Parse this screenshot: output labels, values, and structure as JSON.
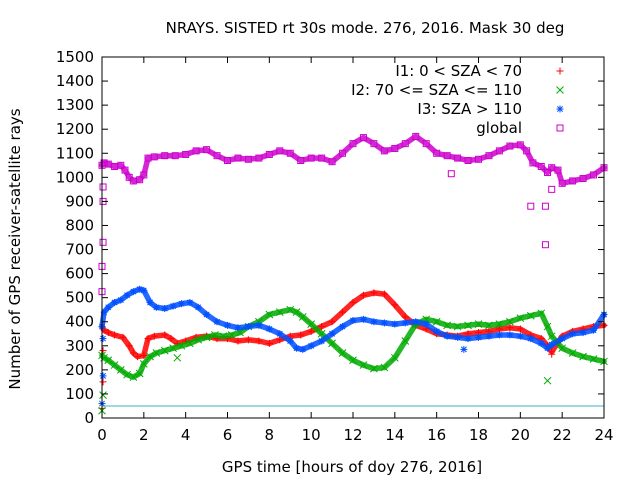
{
  "chart_data": {
    "type": "scatter",
    "title": "NRAYS. SISTED rt 30s mode. 276, 2016. Mask 30 deg",
    "xlabel": "GPS time [hours of doy 276, 2016]",
    "ylabel": "Number of GPS receiver-satellite rays",
    "xlim": [
      0,
      24
    ],
    "ylim": [
      0,
      1500
    ],
    "xticks": [
      0,
      2,
      4,
      6,
      8,
      10,
      12,
      14,
      16,
      18,
      20,
      22,
      24
    ],
    "yticks": [
      0,
      100,
      200,
      300,
      400,
      500,
      600,
      700,
      800,
      900,
      1000,
      1100,
      1200,
      1300,
      1400,
      1500
    ],
    "legend_position": "top-right",
    "reference_line": {
      "y": 50,
      "color": "#40b0c0"
    },
    "series": [
      {
        "name": "I1: 0 < SZA < 70",
        "color": "#ff0000",
        "marker": "+",
        "x": [
          0.0,
          0.1,
          0.3,
          0.6,
          1.0,
          1.3,
          1.5,
          1.7,
          2.0,
          2.2,
          2.5,
          3.0,
          3.3,
          3.6,
          4.0,
          4.5,
          5.0,
          5.5,
          6.0,
          6.5,
          7.0,
          7.5,
          8.0,
          8.5,
          9.0,
          9.5,
          10.0,
          10.5,
          11.0,
          11.5,
          12.0,
          12.5,
          13.0,
          13.5,
          14.0,
          14.5,
          15.0,
          15.5,
          16.0,
          16.5,
          17.0,
          17.5,
          18.0,
          18.5,
          19.0,
          19.5,
          20.0,
          20.5,
          21.0,
          21.3,
          21.5,
          22.0,
          22.5,
          23.0,
          23.5,
          24.0
        ],
        "y": [
          380,
          365,
          355,
          345,
          335,
          300,
          270,
          255,
          260,
          330,
          340,
          345,
          330,
          310,
          320,
          335,
          340,
          330,
          330,
          320,
          325,
          320,
          310,
          325,
          340,
          345,
          360,
          380,
          400,
          440,
          480,
          510,
          520,
          515,
          470,
          420,
          385,
          370,
          350,
          345,
          340,
          350,
          355,
          360,
          370,
          375,
          370,
          345,
          330,
          300,
          275,
          340,
          360,
          370,
          380,
          385
        ]
      },
      {
        "name": "I2: 70 <= SZA <= 110",
        "color": "#00aa00",
        "marker": "x",
        "x": [
          0.0,
          0.1,
          0.3,
          0.6,
          0.9,
          1.2,
          1.5,
          1.8,
          2.0,
          2.3,
          2.6,
          3.0,
          3.4,
          3.8,
          4.2,
          4.6,
          5.0,
          5.4,
          5.8,
          6.2,
          6.6,
          7.0,
          7.5,
          8.0,
          8.5,
          9.0,
          9.3,
          9.6,
          10.0,
          10.5,
          11.0,
          11.5,
          12.0,
          12.5,
          13.0,
          13.5,
          14.0,
          14.5,
          15.0,
          15.5,
          16.0,
          16.5,
          17.0,
          17.5,
          18.0,
          18.5,
          19.0,
          19.5,
          20.0,
          20.5,
          21.0,
          21.3,
          21.5,
          22.0,
          22.5,
          23.0,
          23.5,
          24.0
        ],
        "y": [
          260,
          250,
          240,
          220,
          200,
          180,
          170,
          185,
          225,
          255,
          270,
          280,
          290,
          300,
          310,
          325,
          335,
          345,
          340,
          345,
          355,
          380,
          400,
          430,
          440,
          450,
          440,
          420,
          390,
          350,
          310,
          270,
          240,
          220,
          205,
          210,
          250,
          320,
          390,
          410,
          400,
          385,
          380,
          385,
          390,
          385,
          390,
          400,
          415,
          425,
          435,
          380,
          340,
          290,
          270,
          255,
          245,
          235
        ]
      },
      {
        "name": "I3: SZA > 110",
        "color": "#0050ff",
        "marker": "*",
        "x": [
          0.0,
          0.1,
          0.3,
          0.6,
          0.9,
          1.2,
          1.5,
          1.8,
          2.0,
          2.3,
          2.6,
          3.0,
          3.4,
          3.8,
          4.2,
          4.6,
          5.0,
          5.5,
          6.0,
          6.5,
          7.0,
          7.5,
          8.0,
          8.5,
          9.0,
          9.3,
          9.6,
          10.0,
          10.5,
          11.0,
          11.5,
          12.0,
          12.5,
          13.0,
          13.5,
          14.0,
          14.5,
          15.0,
          15.5,
          16.0,
          16.5,
          17.0,
          17.5,
          18.0,
          18.5,
          19.0,
          19.5,
          20.0,
          20.5,
          21.0,
          21.3,
          21.5,
          22.0,
          22.5,
          23.0,
          23.5,
          24.0
        ],
        "y": [
          380,
          440,
          460,
          480,
          490,
          510,
          525,
          535,
          530,
          480,
          460,
          455,
          465,
          475,
          480,
          460,
          430,
          400,
          385,
          375,
          380,
          385,
          370,
          350,
          320,
          290,
          285,
          300,
          320,
          350,
          380,
          405,
          410,
          400,
          395,
          390,
          395,
          400,
          390,
          360,
          340,
          335,
          330,
          335,
          340,
          345,
          345,
          340,
          330,
          310,
          290,
          305,
          330,
          350,
          355,
          365,
          430
        ]
      },
      {
        "name": "global",
        "color": "#cc00cc",
        "marker": "square",
        "x": [
          0.0,
          0.1,
          0.3,
          0.6,
          0.9,
          1.1,
          1.3,
          1.5,
          1.8,
          2.0,
          2.2,
          2.5,
          3.0,
          3.5,
          4.0,
          4.5,
          5.0,
          5.5,
          6.0,
          6.5,
          7.0,
          7.5,
          8.0,
          8.5,
          9.0,
          9.5,
          10.0,
          10.5,
          11.0,
          11.5,
          12.0,
          12.5,
          13.0,
          13.5,
          14.0,
          14.5,
          15.0,
          15.5,
          16.0,
          16.5,
          17.0,
          17.5,
          18.0,
          18.5,
          19.0,
          19.5,
          20.0,
          20.3,
          20.6,
          21.0,
          21.3,
          21.5,
          21.8,
          22.0,
          22.5,
          23.0,
          23.5,
          24.0
        ],
        "y": [
          1050,
          1060,
          1055,
          1045,
          1050,
          1030,
          1000,
          985,
          990,
          1010,
          1080,
          1085,
          1090,
          1090,
          1095,
          1110,
          1115,
          1090,
          1070,
          1080,
          1075,
          1080,
          1095,
          1110,
          1100,
          1070,
          1080,
          1080,
          1065,
          1100,
          1140,
          1165,
          1140,
          1110,
          1120,
          1140,
          1170,
          1140,
          1100,
          1090,
          1080,
          1070,
          1075,
          1090,
          1110,
          1130,
          1135,
          1110,
          1060,
          1045,
          1020,
          1040,
          1030,
          975,
          985,
          995,
          1010,
          1040
        ]
      }
    ],
    "outliers": {
      "global": [
        [
          0.0,
          525
        ],
        [
          0.0,
          630
        ],
        [
          0.05,
          730
        ],
        [
          0.05,
          900
        ],
        [
          0.05,
          960
        ],
        [
          16.7,
          1015
        ],
        [
          20.5,
          880
        ],
        [
          21.2,
          880
        ],
        [
          21.2,
          720
        ],
        [
          21.5,
          950
        ]
      ],
      "I1: 0 < SZA < 70": [
        [
          0.0,
          40
        ],
        [
          0.05,
          150
        ],
        [
          0.05,
          280
        ],
        [
          21.5,
          265
        ]
      ],
      "I2: 70 <= SZA <= 110": [
        [
          0.0,
          30
        ],
        [
          0.05,
          95
        ],
        [
          3.6,
          250
        ],
        [
          21.3,
          155
        ]
      ],
      "I3: SZA > 110": [
        [
          0.0,
          60
        ],
        [
          0.05,
          175
        ],
        [
          0.05,
          330
        ],
        [
          17.3,
          285
        ]
      ]
    }
  }
}
